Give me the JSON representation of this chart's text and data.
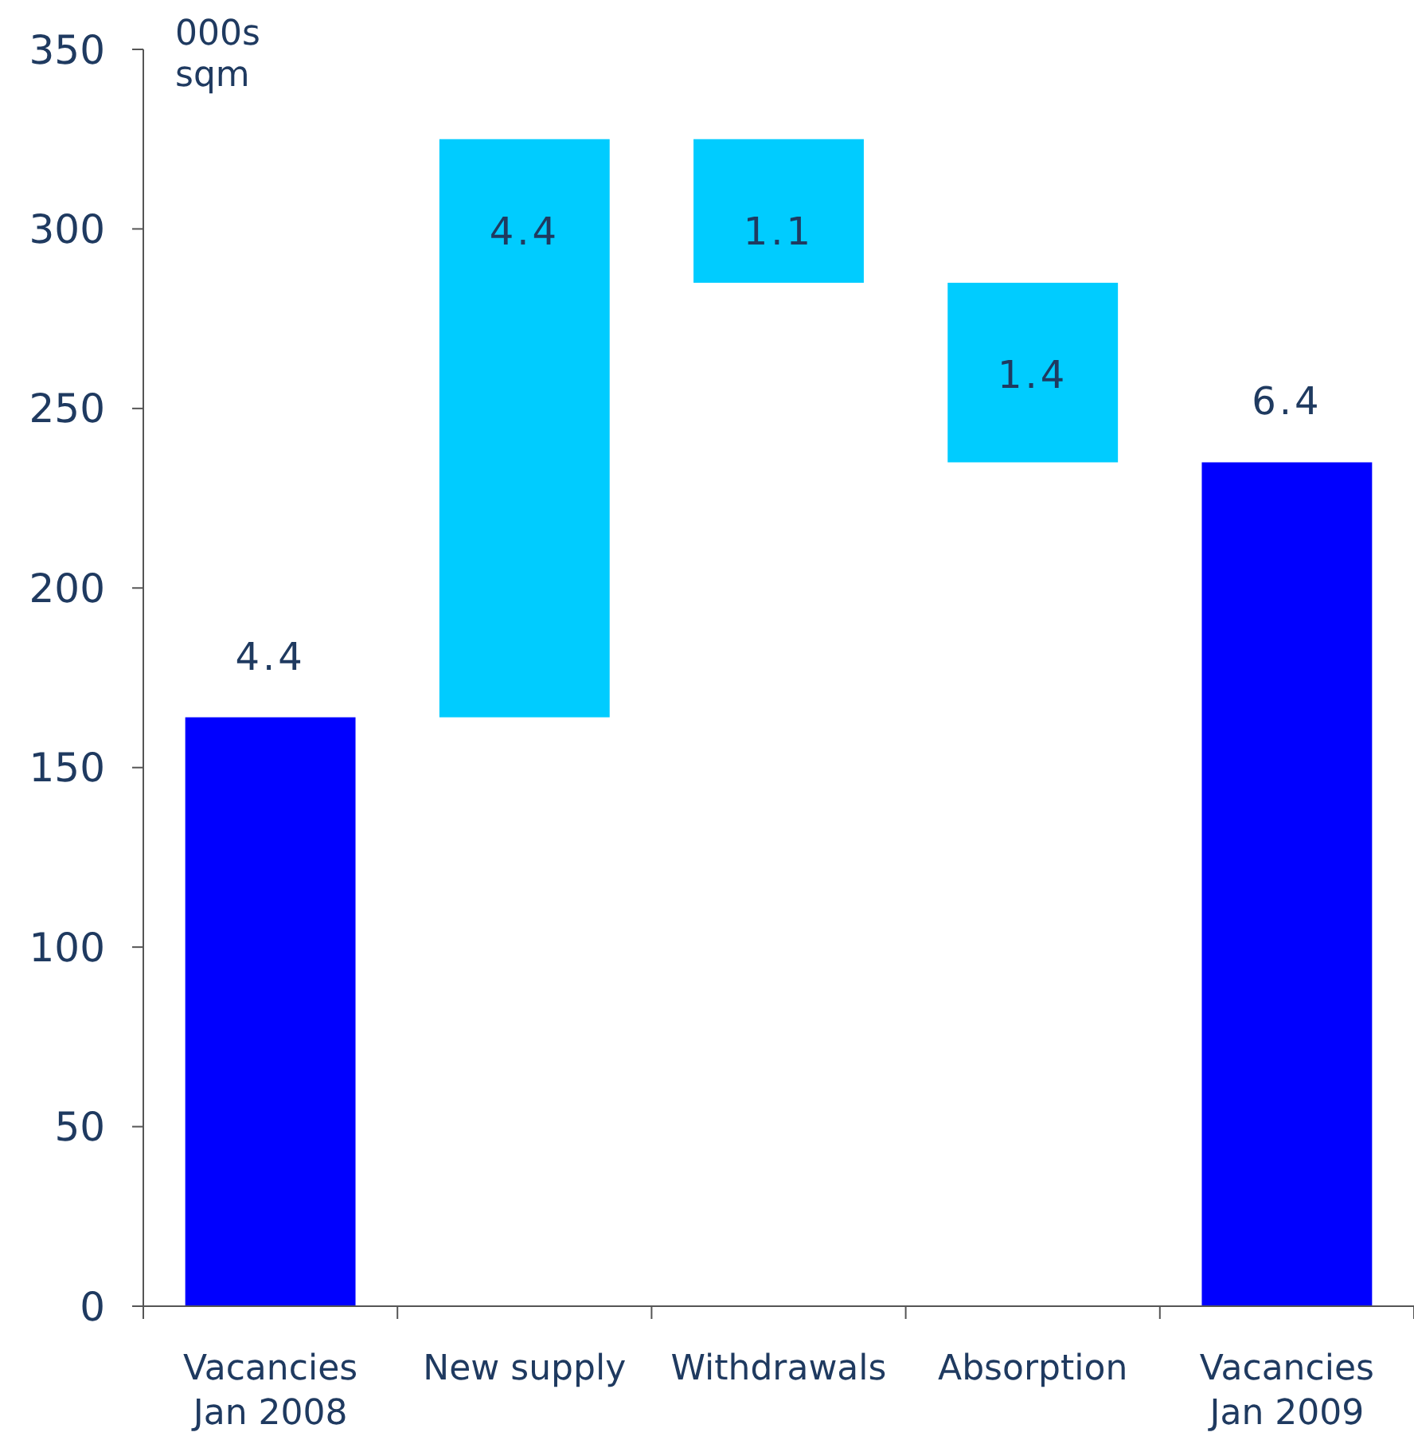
{
  "chart_data": {
    "type": "bar",
    "ylabel": "000s\nsqm",
    "categories": [
      "Vacancies\nJan 2008",
      "New supply",
      "Withdrawals",
      "Absorption",
      "Vacancies\nJan 2009"
    ],
    "values": [
      164,
      161,
      40,
      50,
      235
    ],
    "base": [
      0,
      164,
      285,
      235,
      0
    ],
    "colors": [
      "#0000ff",
      "#00ccff",
      "#00ccff",
      "#00ccff",
      "#0000ff"
    ],
    "annotations": [
      {
        "text": "4.4",
        "x": "Vacancies\nJan 2008",
        "y": 164
      },
      {
        "text": "4.4",
        "x": "New supply",
        "y": 325
      },
      {
        "text": "1.1",
        "x": "Withdrawals",
        "y": 325
      },
      {
        "text": "1.4",
        "x": "Absorption",
        "y": 285
      },
      {
        "text": "6.4",
        "x": "Vacancies\nJan 2009",
        "y": 235
      }
    ],
    "ylim": [
      0,
      350
    ],
    "yticks": [
      0,
      50,
      100,
      150,
      200,
      250,
      300,
      350
    ],
    "grid": false
  }
}
